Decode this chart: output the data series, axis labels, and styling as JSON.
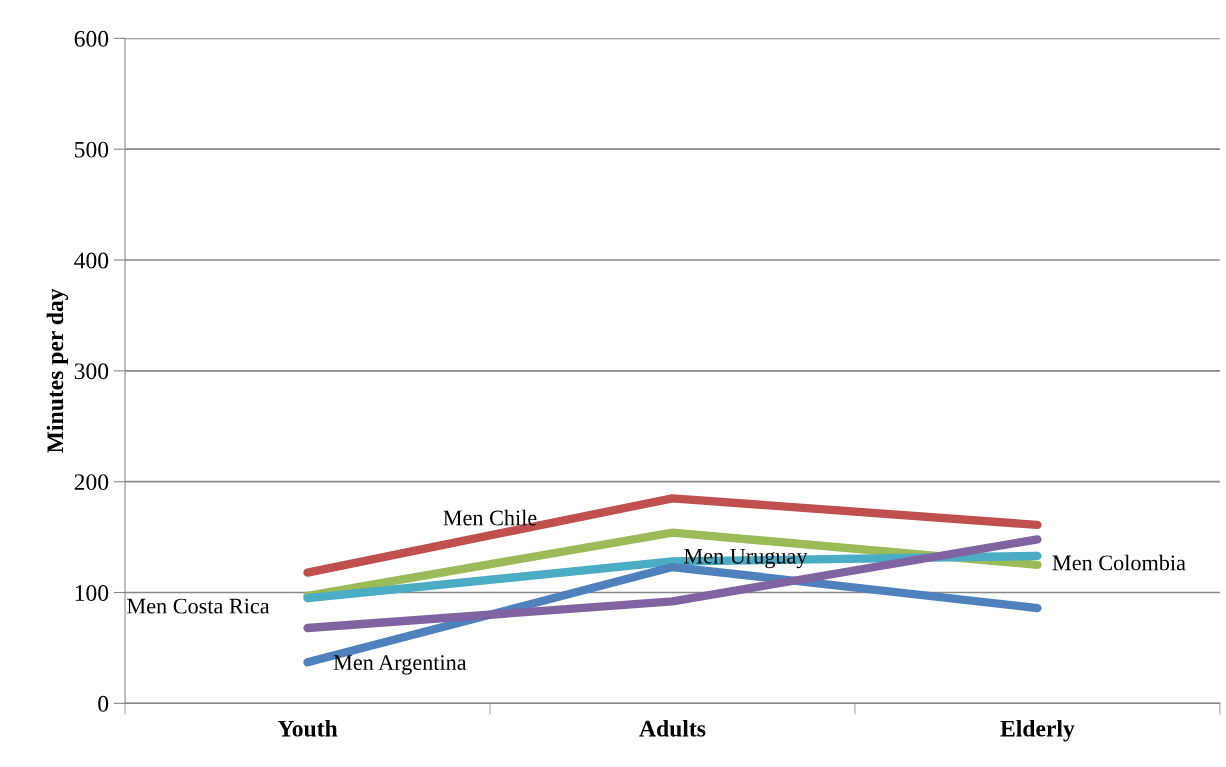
{
  "chart_data": {
    "type": "line",
    "ylabel": "Minutes per day",
    "categories": [
      "Youth",
      "Adults",
      "Elderly"
    ],
    "series": [
      {
        "name": "Men Chile",
        "color": "#c0504d",
        "values": [
          118,
          185,
          161
        ]
      },
      {
        "name": "Men Colombia",
        "color": "#9bbb59",
        "values": [
          97,
          154,
          125
        ]
      },
      {
        "name": "Men Uruguay",
        "color": "#4bacc6",
        "values": [
          95,
          128,
          133
        ]
      },
      {
        "name": "Men Argentina",
        "color": "#4f81bd",
        "values": [
          37,
          123,
          86
        ]
      },
      {
        "name": "Men Costa Rica",
        "color": "#8064a2",
        "values": [
          68,
          92,
          148
        ]
      }
    ],
    "ylim": [
      0,
      600
    ],
    "yticks": [
      0,
      100,
      200,
      300,
      400,
      500,
      600
    ],
    "grid": "y",
    "legend": false
  }
}
